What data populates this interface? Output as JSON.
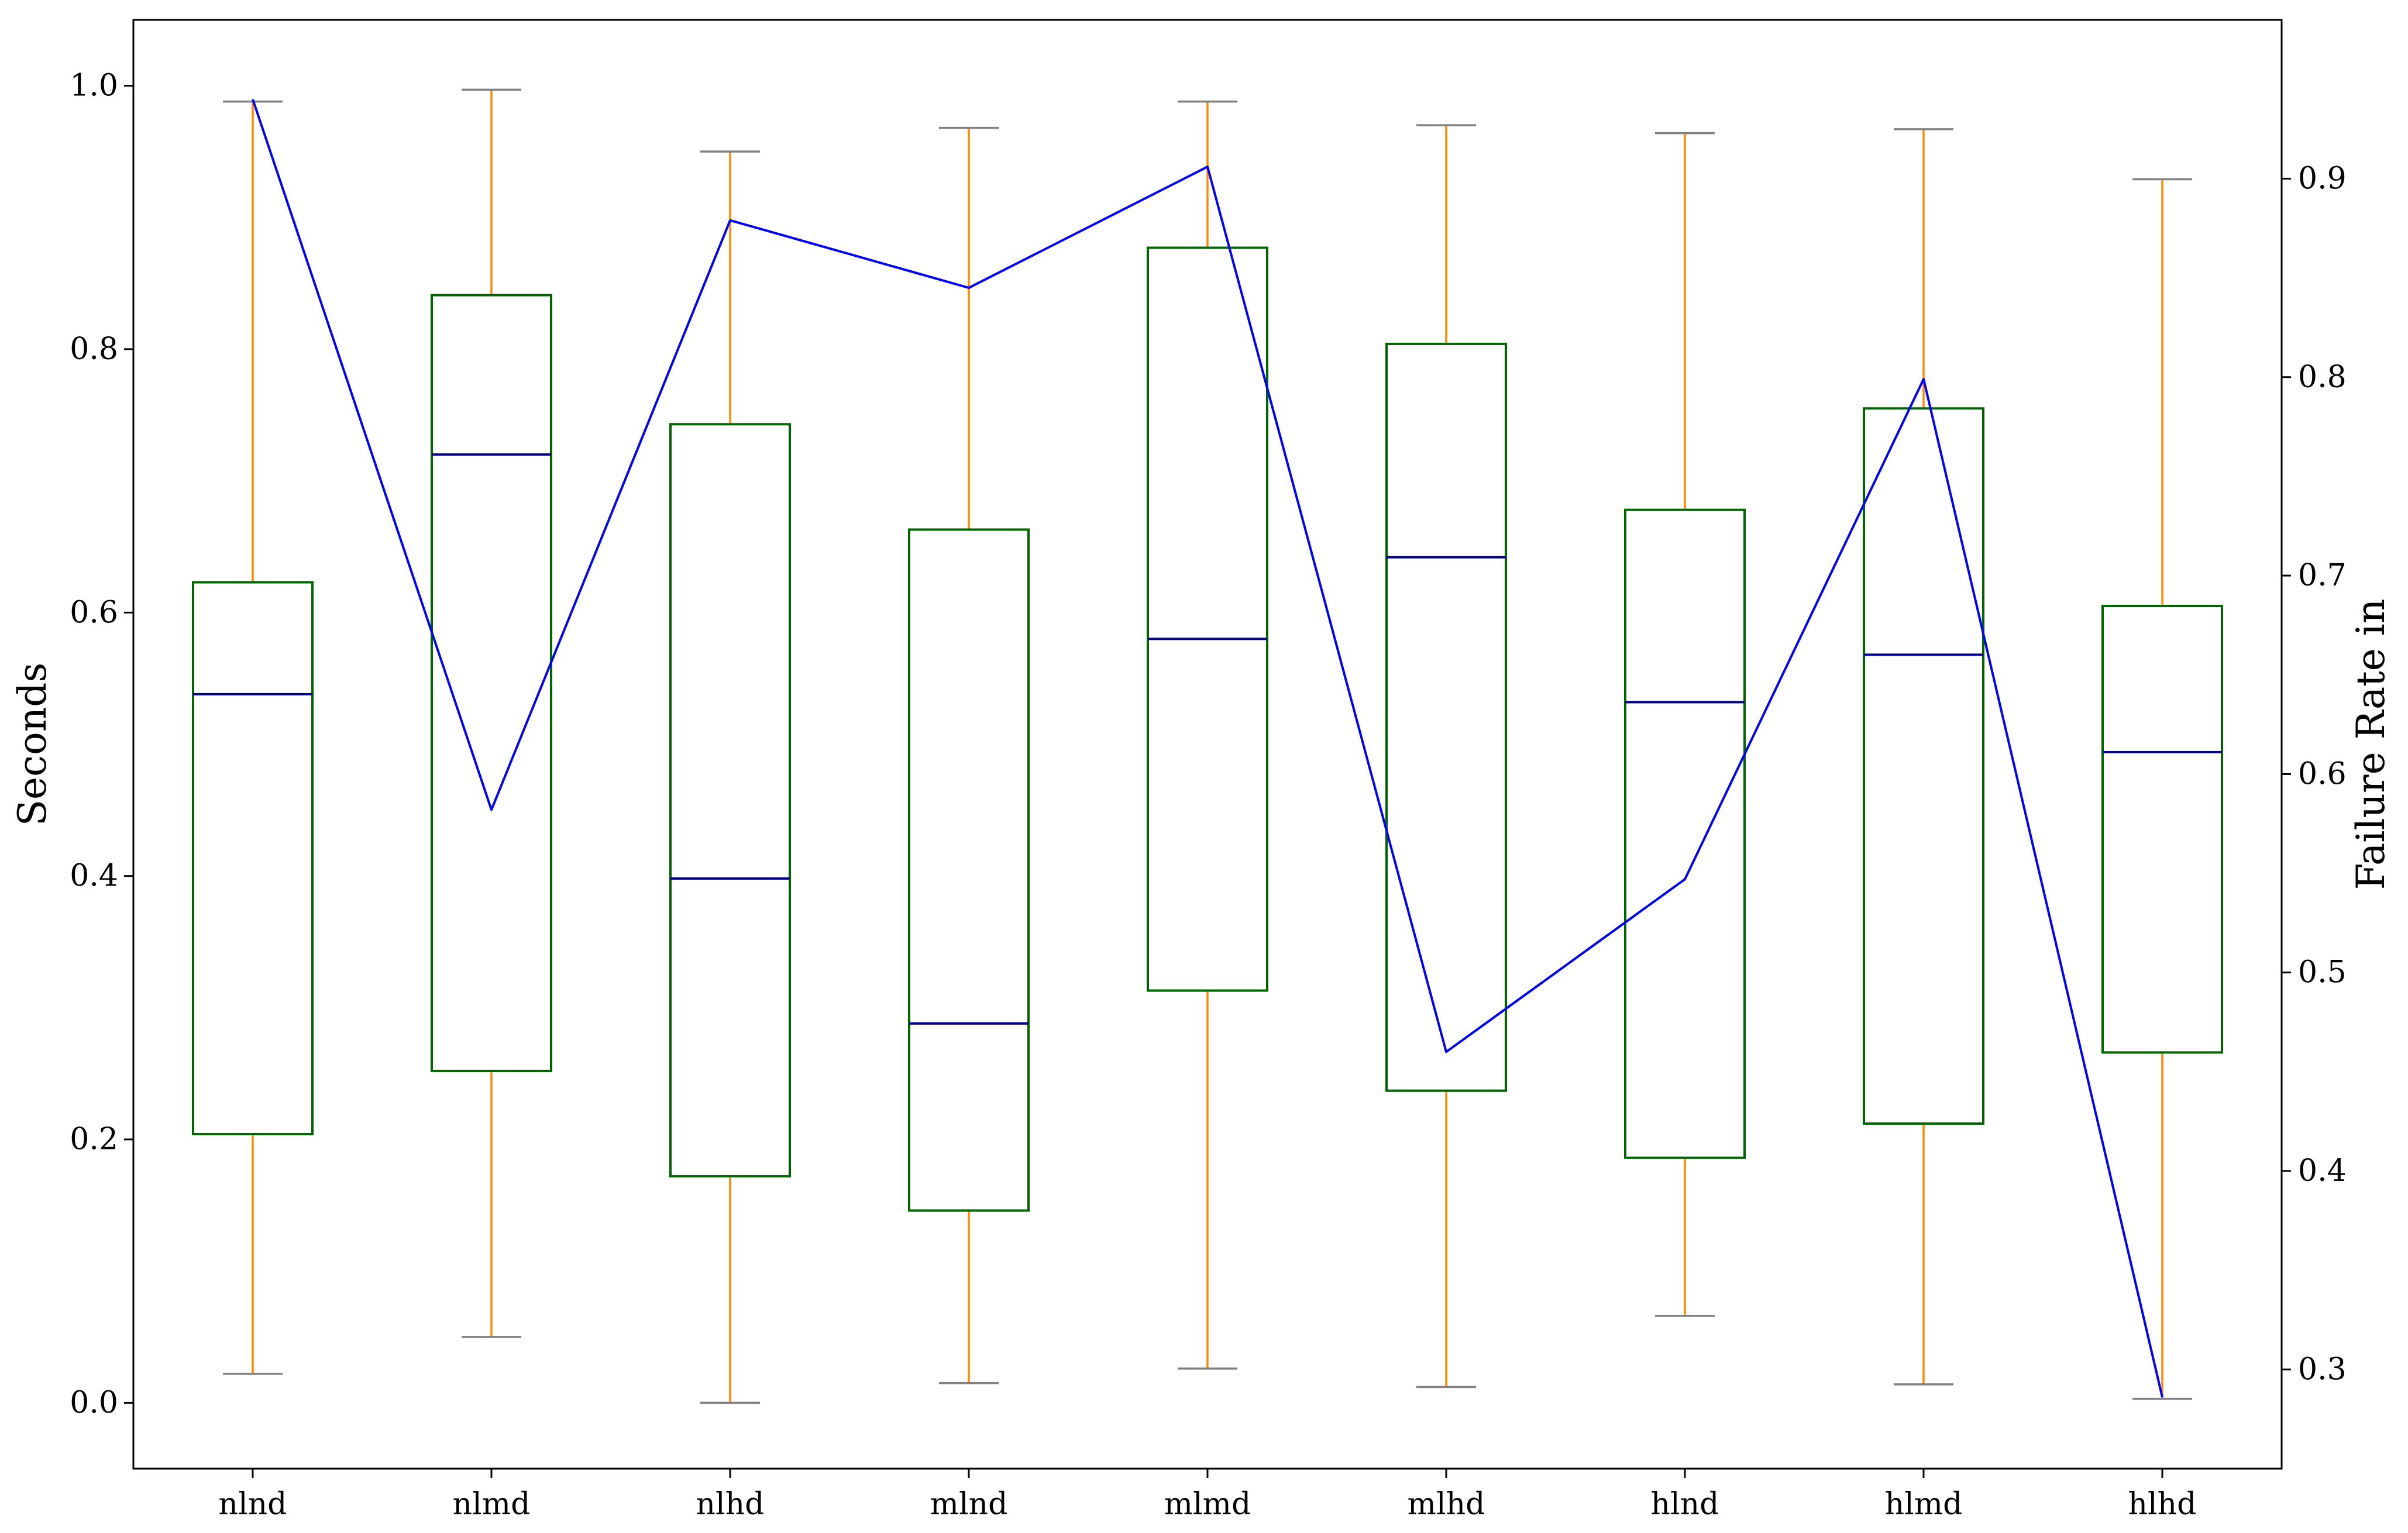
{
  "chart_data": {
    "type": "box",
    "categories": [
      "nlnd",
      "nlmd",
      "nlhd",
      "mlnd",
      "mlmd",
      "mlhd",
      "hlnd",
      "hlmd",
      "hlhd"
    ],
    "ylabel": "Seconds",
    "y2label": "Failure Rate in",
    "ylim": [
      -0.05,
      1.05
    ],
    "y2lim": [
      0.25,
      0.98
    ],
    "yticks": [
      0.0,
      0.2,
      0.4,
      0.6,
      0.8,
      1.0
    ],
    "y2ticks": [
      0.3,
      0.4,
      0.5,
      0.6,
      0.7,
      0.8,
      0.9
    ],
    "boxes": [
      {
        "whisker_low": 0.022,
        "q1": 0.204,
        "median": 0.538,
        "q3": 0.623,
        "whisker_high": 0.988
      },
      {
        "whisker_low": 0.05,
        "q1": 0.252,
        "median": 0.72,
        "q3": 0.841,
        "whisker_high": 0.997
      },
      {
        "whisker_low": 0.0,
        "q1": 0.172,
        "median": 0.398,
        "q3": 0.743,
        "whisker_high": 0.95
      },
      {
        "whisker_low": 0.015,
        "q1": 0.146,
        "median": 0.288,
        "q3": 0.663,
        "whisker_high": 0.968
      },
      {
        "whisker_low": 0.026,
        "q1": 0.313,
        "median": 0.58,
        "q3": 0.877,
        "whisker_high": 0.988
      },
      {
        "whisker_low": 0.012,
        "q1": 0.237,
        "median": 0.642,
        "q3": 0.804,
        "whisker_high": 0.97
      },
      {
        "whisker_low": 0.066,
        "q1": 0.186,
        "median": 0.532,
        "q3": 0.678,
        "whisker_high": 0.964
      },
      {
        "whisker_low": 0.014,
        "q1": 0.212,
        "median": 0.568,
        "q3": 0.755,
        "whisker_high": 0.967
      },
      {
        "whisker_low": 0.003,
        "q1": 0.266,
        "median": 0.494,
        "q3": 0.605,
        "whisker_high": 0.929
      }
    ],
    "failure_rate": [
      0.94,
      0.582,
      0.879,
      0.845,
      0.906,
      0.46,
      0.547,
      0.799,
      0.286
    ],
    "grid": false,
    "colors": {
      "box": "#006400",
      "whisker": "#ff8c00",
      "cap": "#808080",
      "median": "#00008b",
      "line": "#0000ff",
      "axes": "#000000"
    }
  }
}
